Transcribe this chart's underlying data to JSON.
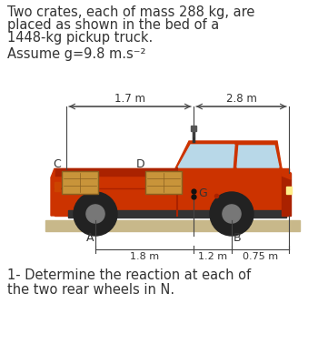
{
  "title_lines": [
    "Two crates, each of mass 288 kg, are",
    "placed as shown in the bed of a",
    "1448-kg pickup truck."
  ],
  "assume_line": "Assume g=9.8 m.s⁻²",
  "dim_top_left": "1.7 m",
  "dim_top_right": "2.8 m",
  "dim_bot_left": "1.8 m",
  "dim_bot_mid": "1.2 m",
  "dim_bot_right": "0.75 m",
  "label_C": "C",
  "label_D": "D",
  "label_G": "G",
  "label_A": "A",
  "label_B": "B",
  "question": "1- Determine the reaction at each of\nthe two rear wheels in N.",
  "truck_color": "#cc3300",
  "truck_dark": "#aa2200",
  "wheel_color": "#222222",
  "wheel_inner": "#777777",
  "crate_color": "#c8943a",
  "crate_edge": "#8a6020",
  "ground_color": "#c8b88a",
  "wind_color": "#b8d8e8",
  "bg_color": "#ffffff",
  "text_color": "#333333",
  "line_color": "#444444"
}
